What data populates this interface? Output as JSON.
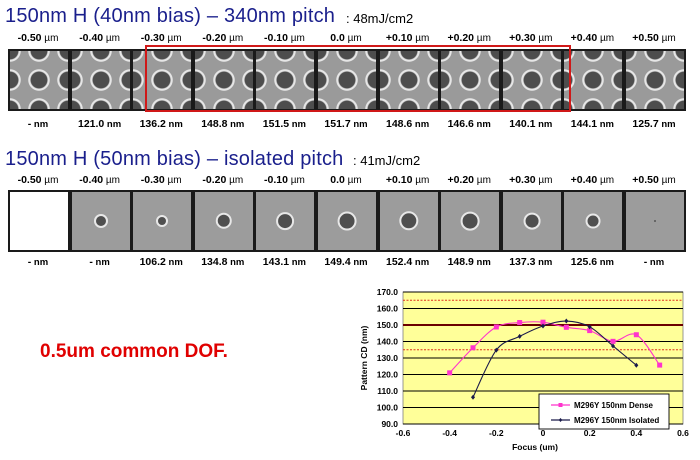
{
  "section_dense": {
    "title": "150nm H (40nm bias) – 340nm pitch",
    "dose": ": 48mJ/cm2",
    "focus_labels": [
      "-0.50",
      "-0.40",
      "-0.30",
      "-0.20",
      "-0.10",
      "0.0",
      "+0.10",
      "+0.20",
      "+0.30",
      "+0.40",
      "+0.50"
    ],
    "focus_unit": "µm",
    "cd_values": [
      "-",
      "121.0",
      "136.2",
      "148.8",
      "151.5",
      "151.7",
      "148.6",
      "146.6",
      "140.1",
      "144.1",
      "125.7"
    ],
    "cd_unit": "nm",
    "highlighted_window": {
      "from": "-0.30",
      "to": "+0.30",
      "color": "#d01818"
    }
  },
  "section_isolated": {
    "title": "150nm H (50nm bias) – isolated pitch",
    "dose": ": 41mJ/cm2",
    "focus_labels": [
      "-0.50",
      "-0.40",
      "-0.30",
      "-0.20",
      "-0.10",
      "0.0",
      "+0.10",
      "+0.20",
      "+0.30",
      "+0.40",
      "+0.50"
    ],
    "focus_unit": "µm",
    "cd_values": [
      "-",
      "-",
      "106.2",
      "134.8",
      "143.1",
      "149.4",
      "152.4",
      "148.9",
      "137.3",
      "125.6",
      "-"
    ],
    "cd_unit": "nm"
  },
  "conclusion": {
    "text": "0.5um common DOF.",
    "color": "#e00000"
  },
  "chart_data": {
    "type": "line",
    "title": "",
    "xlabel": "Focus (um)",
    "ylabel": "Pattern CD (nm)",
    "xlim": [
      -0.6,
      0.6
    ],
    "ylim": [
      90,
      170
    ],
    "x_ticks": [
      "-0.6",
      "-0.4",
      "-0.2",
      "0",
      "0.2",
      "0.4",
      "0.6"
    ],
    "y_ticks": [
      "90.0",
      "100.0",
      "110.0",
      "120.0",
      "130.0",
      "140.0",
      "150.0",
      "160.0",
      "170.0"
    ],
    "grid": true,
    "background": "#ffff99",
    "reference_lines": [
      {
        "y": 165,
        "style": "dashed",
        "color": "#e03020"
      },
      {
        "y": 150,
        "style": "solid-thick",
        "color": "#6b0000"
      },
      {
        "y": 135,
        "style": "dashed",
        "color": "#e03020"
      }
    ],
    "legend_position": "lower right inside",
    "series": [
      {
        "name": "M296Y 150nm Dense",
        "color": "#ff33cc",
        "marker": "square",
        "x": [
          -0.4,
          -0.3,
          -0.2,
          -0.1,
          0.0,
          0.1,
          0.2,
          0.3,
          0.4,
          0.5
        ],
        "values": [
          121.0,
          136.2,
          148.8,
          151.5,
          151.7,
          148.6,
          146.6,
          140.1,
          144.1,
          125.7
        ]
      },
      {
        "name": "M296Y 150nm Isolated",
        "color": "#1a1a4a",
        "marker": "diamond",
        "x": [
          -0.3,
          -0.2,
          -0.1,
          0.0,
          0.1,
          0.2,
          0.3,
          0.4
        ],
        "values": [
          106.2,
          134.8,
          143.1,
          149.4,
          152.4,
          148.9,
          137.3,
          125.6
        ]
      }
    ]
  }
}
